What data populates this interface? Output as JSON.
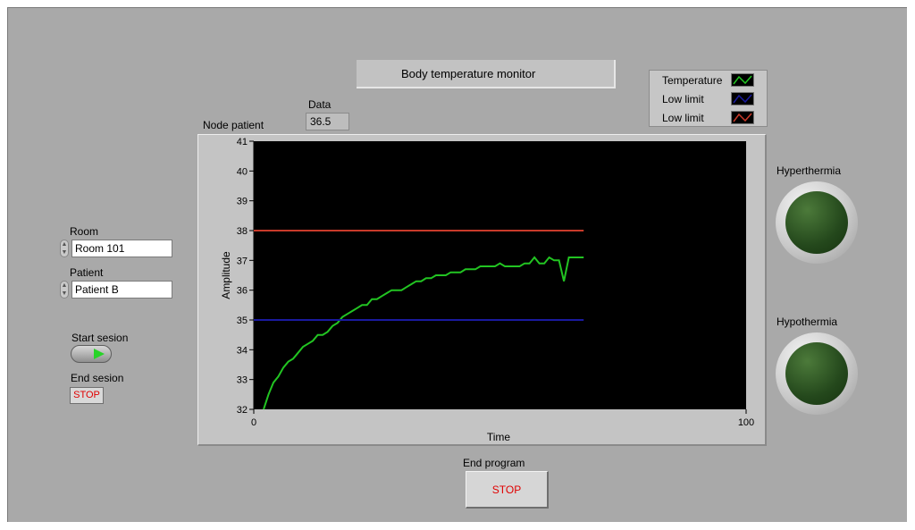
{
  "header": {
    "title": "Body temperature  monitor"
  },
  "data_indicator": {
    "label": "Data",
    "value": "36.5"
  },
  "node_label": "Node patient",
  "legend": {
    "items": [
      {
        "label": "Temperature",
        "color": "#22c422"
      },
      {
        "label": "Low limit",
        "color": "#1a1aa0"
      },
      {
        "label": "Low limit",
        "color": "#c83a2a"
      }
    ]
  },
  "room": {
    "label": "Room",
    "value": "Room 101"
  },
  "patient": {
    "label": "Patient",
    "value": "Patient B"
  },
  "start_session": {
    "label": "Start sesion"
  },
  "end_session": {
    "label": "End sesion",
    "button": "STOP"
  },
  "end_program": {
    "label": "End program",
    "button": "STOP"
  },
  "indicators": {
    "hyperthermia": "Hyperthermia",
    "hypothermia": "Hypothermia"
  },
  "chart_data": {
    "type": "line",
    "xlabel": "Time",
    "ylabel": "Amplitude",
    "xlim": [
      0,
      100
    ],
    "ylim": [
      32,
      41
    ],
    "x_ticks": [
      "0",
      "100"
    ],
    "y_ticks": [
      "32",
      "33",
      "34",
      "35",
      "36",
      "37",
      "38",
      "39",
      "40",
      "41"
    ],
    "background": "#000000",
    "grid": false,
    "series": [
      {
        "name": "Temperature",
        "color": "#22c422",
        "x": [
          2,
          3,
          4,
          5,
          6,
          7,
          8,
          9,
          10,
          11,
          12,
          13,
          14,
          15,
          16,
          17,
          18,
          19,
          20,
          21,
          22,
          23,
          24,
          25,
          26,
          27,
          28,
          29,
          30,
          31,
          32,
          33,
          34,
          35,
          36,
          37,
          38,
          39,
          40,
          41,
          42,
          43,
          44,
          45,
          46,
          47,
          48,
          49,
          50,
          51,
          52,
          53,
          54,
          55,
          56,
          57,
          58,
          59,
          60,
          61,
          62,
          63,
          64,
          65,
          66,
          67
        ],
        "values": [
          32.0,
          32.5,
          32.9,
          33.1,
          33.4,
          33.6,
          33.7,
          33.9,
          34.1,
          34.2,
          34.3,
          34.5,
          34.5,
          34.6,
          34.8,
          34.9,
          35.1,
          35.2,
          35.3,
          35.4,
          35.5,
          35.5,
          35.7,
          35.7,
          35.8,
          35.9,
          36.0,
          36.0,
          36.0,
          36.1,
          36.2,
          36.3,
          36.3,
          36.4,
          36.4,
          36.5,
          36.5,
          36.5,
          36.6,
          36.6,
          36.6,
          36.7,
          36.7,
          36.7,
          36.8,
          36.8,
          36.8,
          36.8,
          36.9,
          36.8,
          36.8,
          36.8,
          36.8,
          36.9,
          36.9,
          37.1,
          36.9,
          36.9,
          37.1,
          37.0,
          37.0,
          36.3,
          37.1,
          37.1,
          37.1,
          37.1
        ]
      },
      {
        "name": "Low limit",
        "color": "#1a1aa0",
        "x": [
          0,
          67
        ],
        "values": [
          35,
          35
        ]
      },
      {
        "name": "Low limit",
        "color": "#c83a2a",
        "x": [
          0,
          67
        ],
        "values": [
          38,
          38
        ]
      }
    ]
  }
}
